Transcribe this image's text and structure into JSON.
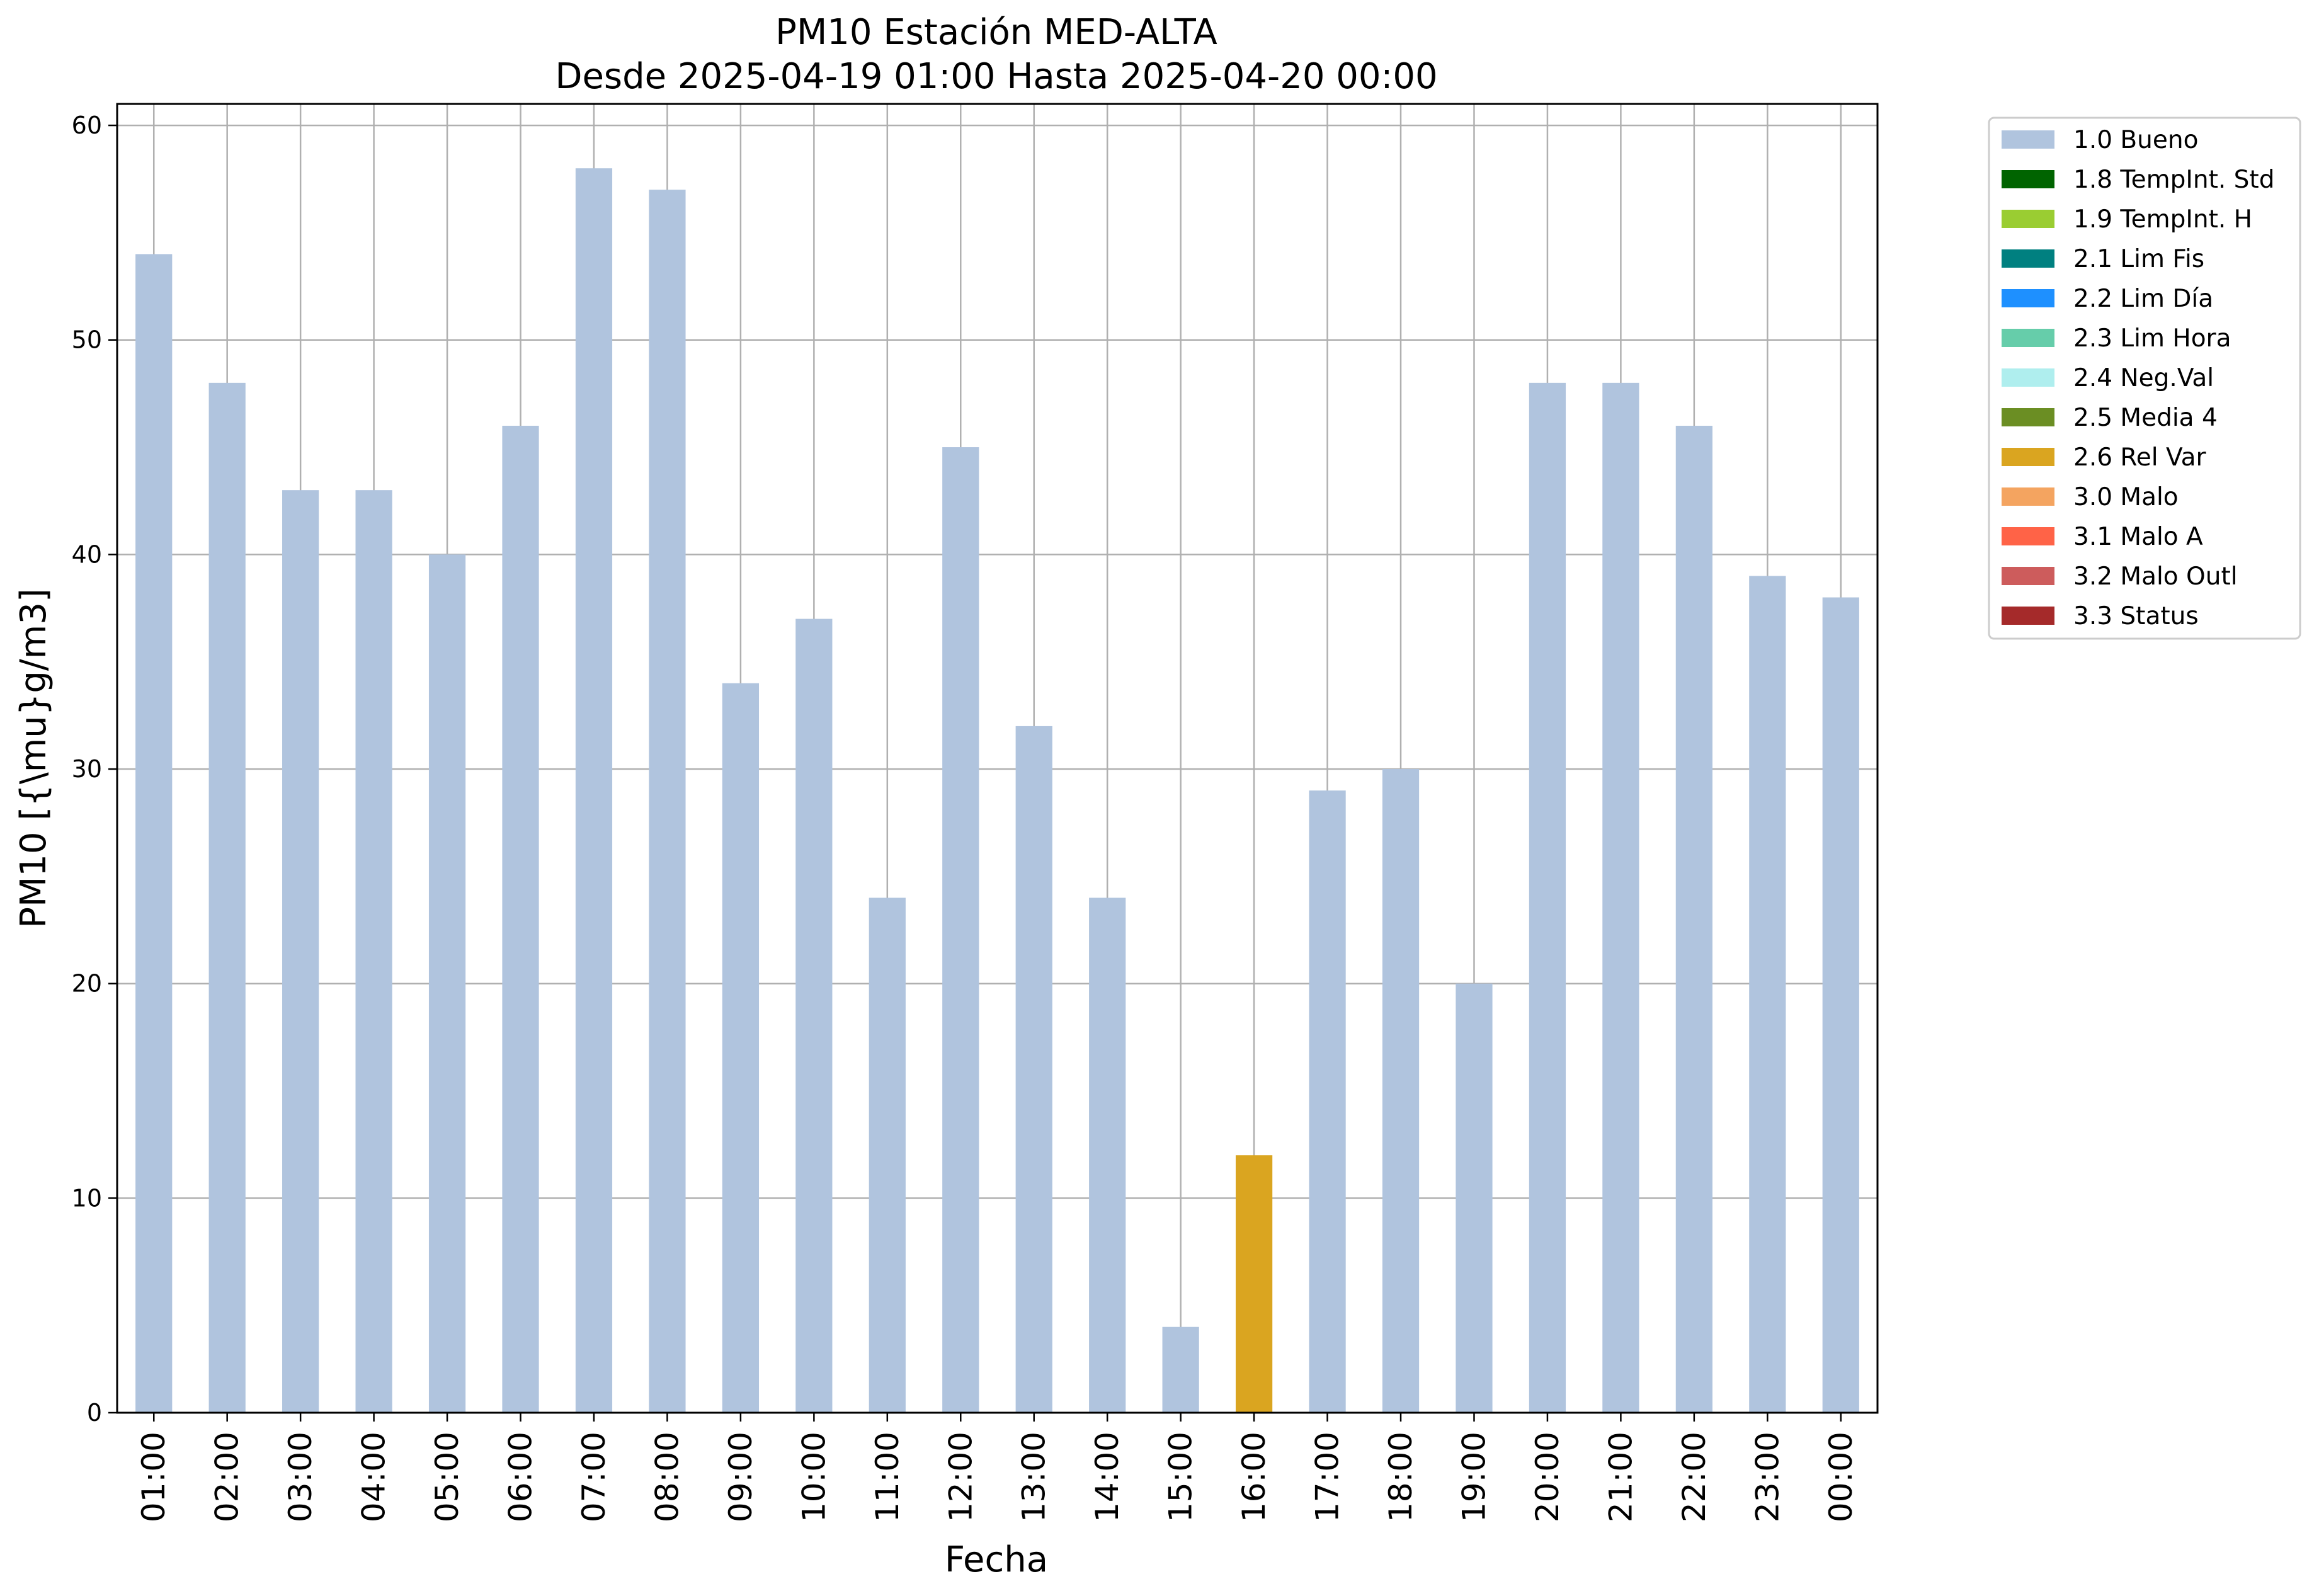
{
  "chart_data": {
    "type": "bar",
    "title": "PM10 Estación MED-ALTA",
    "subtitle": "Desde 2025-04-19 01:00 Hasta 2025-04-20 00:00",
    "xlabel": "Fecha",
    "ylabel": "PM10 [{\\mu}g/m3]",
    "ylim": [
      0,
      61
    ],
    "yticks": [
      0,
      10,
      20,
      30,
      40,
      50,
      60
    ],
    "grid": true,
    "legend_position": "outside-top-right",
    "categories": [
      "01:00",
      "02:00",
      "03:00",
      "04:00",
      "05:00",
      "06:00",
      "07:00",
      "08:00",
      "09:00",
      "10:00",
      "11:00",
      "12:00",
      "13:00",
      "14:00",
      "15:00",
      "16:00",
      "17:00",
      "18:00",
      "19:00",
      "20:00",
      "21:00",
      "22:00",
      "23:00",
      "00:00"
    ],
    "values": [
      54,
      48,
      43,
      43,
      40,
      46,
      58,
      57,
      34,
      37,
      24,
      45,
      32,
      24,
      4,
      12,
      29,
      30,
      20,
      48,
      48,
      46,
      39,
      38
    ],
    "bar_flags": [
      "1.0 Bueno",
      "1.0 Bueno",
      "1.0 Bueno",
      "1.0 Bueno",
      "1.0 Bueno",
      "1.0 Bueno",
      "1.0 Bueno",
      "1.0 Bueno",
      "1.0 Bueno",
      "1.0 Bueno",
      "1.0 Bueno",
      "1.0 Bueno",
      "1.0 Bueno",
      "1.0 Bueno",
      "1.0 Bueno",
      "2.6 Rel Var",
      "1.0 Bueno",
      "1.0 Bueno",
      "1.0 Bueno",
      "1.0 Bueno",
      "1.0 Bueno",
      "1.0 Bueno",
      "1.0 Bueno",
      "1.0 Bueno"
    ],
    "legend": [
      {
        "label": "1.0 Bueno",
        "color": "#b0c4de"
      },
      {
        "label": "1.8 TempInt. Std",
        "color": "#006400"
      },
      {
        "label": "1.9 TempInt. H",
        "color": "#9acd32"
      },
      {
        "label": "2.1 Lim Fis",
        "color": "#008080"
      },
      {
        "label": "2.2 Lim Día",
        "color": "#1e90ff"
      },
      {
        "label": "2.3 Lim Hora",
        "color": "#66cdaa"
      },
      {
        "label": "2.4 Neg.Val",
        "color": "#afeeee"
      },
      {
        "label": "2.5 Media 4",
        "color": "#6b8e23"
      },
      {
        "label": "2.6 Rel Var",
        "color": "#daa520"
      },
      {
        "label": "3.0 Malo",
        "color": "#f4a460"
      },
      {
        "label": "3.1 Malo A",
        "color": "#ff6347"
      },
      {
        "label": "3.2 Malo Outl",
        "color": "#cd5c5c"
      },
      {
        "label": "3.3 Status",
        "color": "#a52a2a"
      }
    ]
  }
}
